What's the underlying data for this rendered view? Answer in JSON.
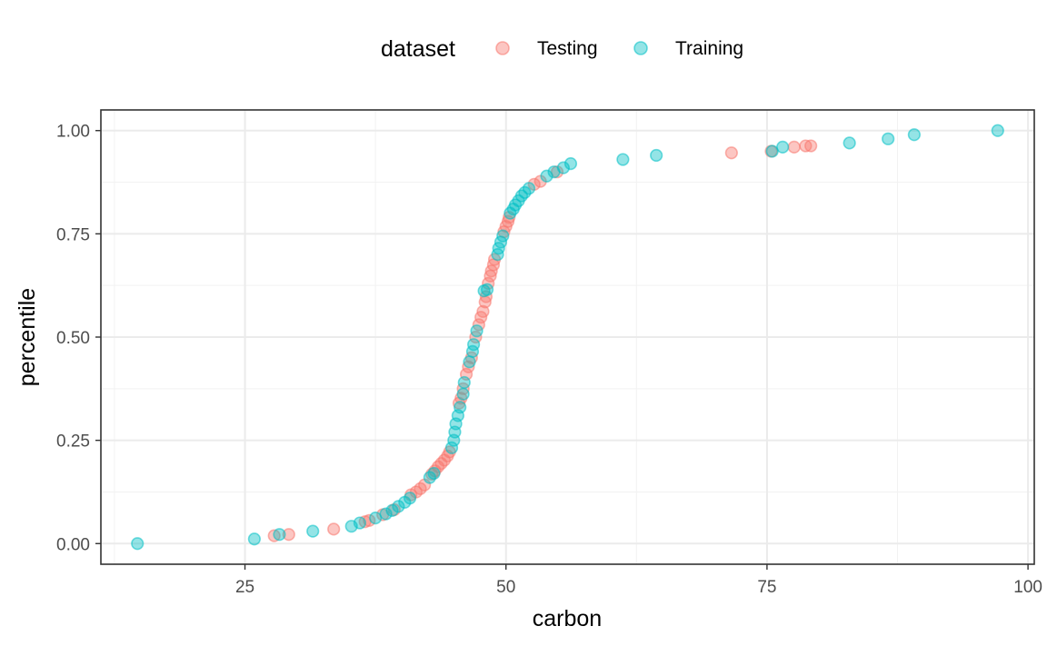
{
  "chart_data": {
    "type": "scatter",
    "xlabel": "carbon",
    "ylabel": "percentile",
    "xlim": [
      11.2,
      100.6
    ],
    "ylim": [
      -0.05,
      1.05
    ],
    "x_ticks": [
      25,
      50,
      75,
      100
    ],
    "x_tick_labels": [
      "25",
      "50",
      "75",
      "100"
    ],
    "y_ticks": [
      0.0,
      0.25,
      0.5,
      0.75,
      1.0
    ],
    "y_tick_labels": [
      "0.00",
      "0.25",
      "0.50",
      "0.75",
      "1.00"
    ],
    "grid": true,
    "legend": {
      "title": "dataset",
      "position": "top"
    },
    "series": [
      {
        "name": "Testing",
        "color": "#F8766D",
        "points": [
          [
            27.8,
            0.019
          ],
          [
            29.2,
            0.022
          ],
          [
            33.5,
            0.035
          ],
          [
            36.5,
            0.053
          ],
          [
            36.9,
            0.056
          ],
          [
            38.2,
            0.07
          ],
          [
            39.3,
            0.082
          ],
          [
            40.9,
            0.118
          ],
          [
            41.4,
            0.125
          ],
          [
            41.8,
            0.133
          ],
          [
            42.2,
            0.142
          ],
          [
            42.9,
            0.168
          ],
          [
            43.2,
            0.176
          ],
          [
            43.5,
            0.186
          ],
          [
            43.8,
            0.194
          ],
          [
            44.1,
            0.202
          ],
          [
            44.4,
            0.212
          ],
          [
            44.6,
            0.222
          ],
          [
            45.5,
            0.34
          ],
          [
            45.7,
            0.352
          ],
          [
            45.9,
            0.375
          ],
          [
            46.2,
            0.41
          ],
          [
            46.4,
            0.428
          ],
          [
            46.7,
            0.45
          ],
          [
            47.1,
            0.5
          ],
          [
            47.4,
            0.53
          ],
          [
            47.6,
            0.548
          ],
          [
            47.8,
            0.562
          ],
          [
            48.0,
            0.585
          ],
          [
            48.1,
            0.598
          ],
          [
            48.3,
            0.63
          ],
          [
            48.5,
            0.648
          ],
          [
            48.6,
            0.66
          ],
          [
            48.8,
            0.675
          ],
          [
            48.9,
            0.688
          ],
          [
            49.8,
            0.755
          ],
          [
            50.0,
            0.768
          ],
          [
            50.2,
            0.78
          ],
          [
            50.3,
            0.79
          ],
          [
            52.7,
            0.87
          ],
          [
            53.3,
            0.877
          ],
          [
            54.9,
            0.9
          ],
          [
            71.6,
            0.946
          ],
          [
            75.4,
            0.95
          ],
          [
            77.6,
            0.96
          ],
          [
            78.7,
            0.963
          ],
          [
            79.2,
            0.963
          ]
        ]
      },
      {
        "name": "Training",
        "color": "#00BFC4",
        "points": [
          [
            14.7,
            0.0
          ],
          [
            25.9,
            0.011
          ],
          [
            28.3,
            0.022
          ],
          [
            31.5,
            0.03
          ],
          [
            35.2,
            0.042
          ],
          [
            36.0,
            0.05
          ],
          [
            37.5,
            0.062
          ],
          [
            38.5,
            0.072
          ],
          [
            39.1,
            0.08
          ],
          [
            39.7,
            0.09
          ],
          [
            40.3,
            0.1
          ],
          [
            40.8,
            0.11
          ],
          [
            42.7,
            0.16
          ],
          [
            43.1,
            0.17
          ],
          [
            44.8,
            0.232
          ],
          [
            45.0,
            0.25
          ],
          [
            45.1,
            0.27
          ],
          [
            45.2,
            0.29
          ],
          [
            45.4,
            0.31
          ],
          [
            45.6,
            0.33
          ],
          [
            45.9,
            0.362
          ],
          [
            46.0,
            0.39
          ],
          [
            46.5,
            0.44
          ],
          [
            46.8,
            0.465
          ],
          [
            46.9,
            0.482
          ],
          [
            47.2,
            0.515
          ],
          [
            47.9,
            0.612
          ],
          [
            48.2,
            0.615
          ],
          [
            49.2,
            0.7
          ],
          [
            49.3,
            0.715
          ],
          [
            49.5,
            0.73
          ],
          [
            49.7,
            0.745
          ],
          [
            50.4,
            0.8
          ],
          [
            50.7,
            0.81
          ],
          [
            50.9,
            0.82
          ],
          [
            51.2,
            0.83
          ],
          [
            51.5,
            0.842
          ],
          [
            51.8,
            0.85
          ],
          [
            52.2,
            0.86
          ],
          [
            53.9,
            0.89
          ],
          [
            54.6,
            0.9
          ],
          [
            55.5,
            0.91
          ],
          [
            56.2,
            0.92
          ],
          [
            61.2,
            0.93
          ],
          [
            64.4,
            0.94
          ],
          [
            75.5,
            0.95
          ],
          [
            76.5,
            0.96
          ],
          [
            82.9,
            0.97
          ],
          [
            86.6,
            0.98
          ],
          [
            89.1,
            0.99
          ],
          [
            97.1,
            1.0
          ]
        ]
      }
    ]
  }
}
